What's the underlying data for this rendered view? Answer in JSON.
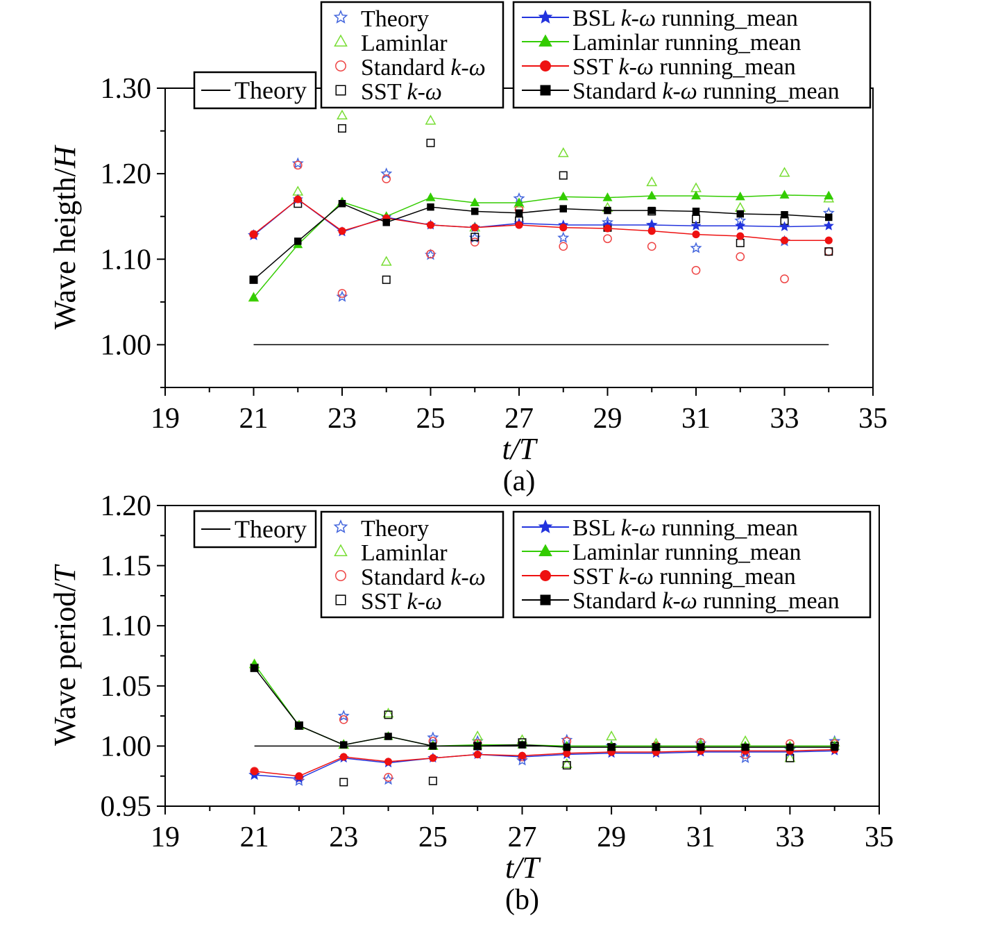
{
  "colors": {
    "theory": "#000000",
    "bsl": "#2233dd",
    "laminar": "#33cc00",
    "sst": "#ee1111",
    "standard": "#000000",
    "bsl_point": "#4466dd",
    "laminar_point": "#77dd33",
    "sst_point": "#ee4444",
    "standard_point": "#000000"
  },
  "chart_data": [
    {
      "type": "scatter",
      "caption": "(a)",
      "xlabel": "t/T",
      "ylabel_text": "Wave heigth/",
      "ylabel_symbol": "H",
      "xlim": [
        19,
        35
      ],
      "ylim": [
        0.95,
        1.3
      ],
      "xticks": [
        19,
        21,
        23,
        25,
        27,
        29,
        31,
        33,
        35
      ],
      "yticks": [
        1.0,
        1.1,
        1.2,
        1.3
      ],
      "ytick_labels": [
        "1.00",
        "1.10",
        "1.20",
        "1.30"
      ],
      "grid": false,
      "theory_line": {
        "name": "Theory",
        "x": [
          21,
          34
        ],
        "y": [
          1.0,
          1.0
        ]
      },
      "legend_points": {
        "placement": "top-center",
        "entries": [
          {
            "text": "Theory",
            "italic": ""
          },
          {
            "text": "Laminlar",
            "italic": ""
          },
          {
            "text": "Standard ",
            "italic": "k-ω"
          },
          {
            "text": "SST ",
            "italic": "k-ω"
          }
        ]
      },
      "legend_means": {
        "placement": "top-right",
        "entries": [
          {
            "pre": "BSL ",
            "italic": "k-ω",
            "post": " running_mean"
          },
          {
            "pre": "Laminlar running_mean",
            "italic": "",
            "post": ""
          },
          {
            "pre": "SST ",
            "italic": "k-ω",
            "post": " running_mean"
          },
          {
            "pre": "Standard ",
            "italic": "k-ω",
            "post": " running_mean"
          }
        ]
      },
      "x": [
        21,
        22,
        23,
        24,
        25,
        26,
        27,
        28,
        29,
        30,
        31,
        32,
        33,
        34
      ],
      "points": [
        {
          "name": "Theory",
          "marker": "star",
          "values": [
            1.128,
            1.212,
            1.056,
            1.2,
            1.105,
            1.125,
            1.171,
            1.125,
            1.143,
            1.14,
            1.113,
            1.145,
            1.121,
            1.154
          ]
        },
        {
          "name": "Laminlar",
          "marker": "triangle",
          "values": [
            1.055,
            1.179,
            1.268,
            1.097,
            1.262,
            1.137,
            1.165,
            1.224,
            1.16,
            1.19,
            1.183,
            1.16,
            1.201,
            1.171
          ]
        },
        {
          "name": "Standard k-ω",
          "marker": "circle",
          "values": [
            1.129,
            1.21,
            1.06,
            1.194,
            1.106,
            1.12,
            1.158,
            1.115,
            1.124,
            1.115,
            1.087,
            1.103,
            1.077,
            1.109
          ]
        },
        {
          "name": "SST k-ω",
          "marker": "square",
          "values": [
            1.076,
            1.165,
            1.253,
            1.076,
            1.236,
            1.126,
            1.145,
            1.198,
            1.137,
            1.156,
            1.147,
            1.119,
            1.145,
            1.109
          ]
        }
      ],
      "means": [
        {
          "name": "BSL k-ω running_mean",
          "marker": "star",
          "values": [
            1.128,
            1.17,
            1.132,
            1.149,
            1.14,
            1.137,
            1.142,
            1.14,
            1.14,
            1.14,
            1.139,
            1.139,
            1.138,
            1.139
          ]
        },
        {
          "name": "Laminlar running_mean",
          "marker": "triangle",
          "values": [
            1.055,
            1.117,
            1.167,
            1.15,
            1.172,
            1.166,
            1.166,
            1.173,
            1.172,
            1.174,
            1.174,
            1.173,
            1.175,
            1.174
          ]
        },
        {
          "name": "SST k-ω running_mean",
          "marker": "circle",
          "values": [
            1.129,
            1.17,
            1.133,
            1.148,
            1.14,
            1.137,
            1.14,
            1.137,
            1.136,
            1.133,
            1.129,
            1.127,
            1.122,
            1.122
          ]
        },
        {
          "name": "Standard k-ω running_mean",
          "marker": "square",
          "values": [
            1.076,
            1.121,
            1.165,
            1.143,
            1.161,
            1.156,
            1.154,
            1.159,
            1.157,
            1.157,
            1.156,
            1.153,
            1.152,
            1.149
          ]
        }
      ]
    },
    {
      "type": "scatter",
      "caption": "(b)",
      "xlabel": "t/T",
      "ylabel_text": "Wave period/",
      "ylabel_symbol": "T",
      "xlim": [
        19,
        35
      ],
      "ylim": [
        0.95,
        1.2
      ],
      "xticks": [
        19,
        21,
        23,
        25,
        27,
        29,
        31,
        33,
        35
      ],
      "yticks": [
        0.95,
        1.0,
        1.05,
        1.1,
        1.15,
        1.2
      ],
      "ytick_labels": [
        "0.95",
        "1.00",
        "1.05",
        "1.10",
        "1.15",
        "1.20"
      ],
      "grid": false,
      "theory_line": {
        "name": "Theory",
        "x": [
          21,
          34
        ],
        "y": [
          1.0,
          1.0
        ]
      },
      "legend_points": {
        "placement": "top-center",
        "entries": [
          {
            "text": "Theory",
            "italic": ""
          },
          {
            "text": "Laminlar",
            "italic": ""
          },
          {
            "text": "Standard ",
            "italic": "k-ω"
          },
          {
            "text": "SST ",
            "italic": "k-ω"
          }
        ]
      },
      "legend_means": {
        "placement": "top-right",
        "entries": [
          {
            "pre": "BSL ",
            "italic": "k-ω",
            "post": " running_mean"
          },
          {
            "pre": "Laminlar running_mean",
            "italic": "",
            "post": ""
          },
          {
            "pre": "SST ",
            "italic": "k-ω",
            "post": " running_mean"
          },
          {
            "pre": "Standard ",
            "italic": "k-ω",
            "post": " running_mean"
          }
        ]
      },
      "x": [
        21,
        22,
        23,
        24,
        25,
        26,
        27,
        28,
        29,
        30,
        31,
        32,
        33,
        34
      ],
      "points": [
        {
          "name": "Theory",
          "marker": "star",
          "values": [
            0.976,
            0.971,
            1.025,
            0.972,
            1.007,
            1.004,
            0.988,
            1.005,
            1.0,
            0.999,
            1.002,
            0.99,
            0.997,
            1.004
          ]
        },
        {
          "name": "Laminlar",
          "marker": "triangle",
          "values": [
            1.068,
            1.017,
            1.001,
            1.027,
            1.0,
            1.008,
            1.005,
            0.985,
            1.008,
            1.002,
            1.001,
            1.004,
            0.99,
            1.003
          ]
        },
        {
          "name": "Standard k-ω",
          "marker": "circle",
          "values": [
            0.979,
            0.974,
            1.022,
            0.974,
            1.004,
            1.002,
            0.991,
            1.004,
            0.999,
            1.0,
            1.003,
            0.993,
            1.002,
            1.002
          ]
        },
        {
          "name": "SST k-ω",
          "marker": "square",
          "values": [
            1.065,
            1.017,
            0.97,
            1.026,
            0.971,
            1.0,
            1.003,
            0.984,
            0.999,
            0.999,
            0.999,
            0.998,
            0.99,
            1.0
          ]
        }
      ],
      "means": [
        {
          "name": "BSL k-ω running_mean",
          "marker": "star",
          "values": [
            0.976,
            0.973,
            0.99,
            0.986,
            0.99,
            0.993,
            0.991,
            0.993,
            0.994,
            0.994,
            0.995,
            0.995,
            0.995,
            0.996
          ]
        },
        {
          "name": "Laminlar running_mean",
          "marker": "triangle",
          "values": [
            1.068,
            1.017,
            1.001,
            1.008,
            1.0,
            1.001,
            1.001,
            1.0,
            1.0,
            1.0,
            1.0,
            1.0,
            1.0,
            1.0
          ]
        },
        {
          "name": "SST k-ω running_mean",
          "marker": "circle",
          "values": [
            0.979,
            0.975,
            0.991,
            0.987,
            0.99,
            0.993,
            0.992,
            0.994,
            0.995,
            0.995,
            0.996,
            0.996,
            0.996,
            0.997
          ]
        },
        {
          "name": "Standard k-ω running_mean",
          "marker": "square",
          "values": [
            1.065,
            1.017,
            1.001,
            1.008,
            1.0,
            1.0,
            1.001,
            0.999,
            0.999,
            0.999,
            0.999,
            0.999,
            0.999,
            0.999
          ]
        }
      ]
    }
  ]
}
